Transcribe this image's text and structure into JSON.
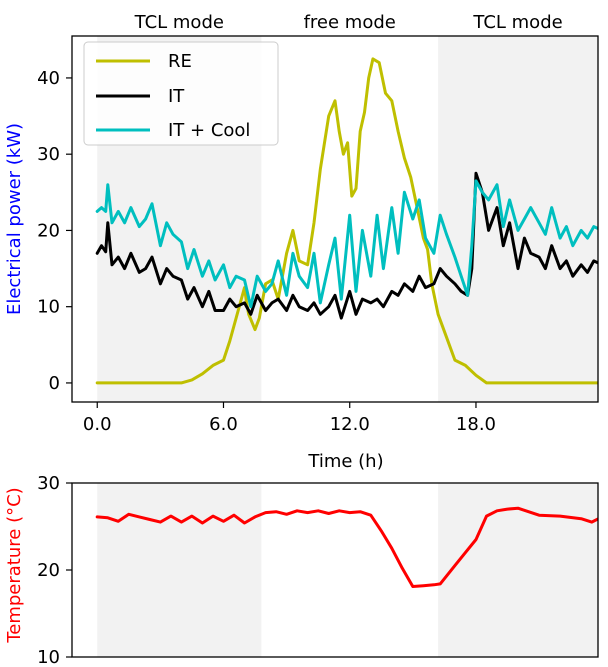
{
  "chart_data": [
    {
      "type": "line",
      "title": "",
      "xlabel": "Time (h)",
      "ylabel": "Electrical power (kW)",
      "ylabel_color": "#0000ff",
      "xlim": [
        -1.2,
        23.8
      ],
      "ylim": [
        -2.5,
        45.5
      ],
      "xticks": [
        0,
        6,
        12,
        18
      ],
      "xtick_labels": [
        "0.0",
        "6.0",
        "12.0",
        "18.0"
      ],
      "yticks": [
        0,
        10,
        20,
        30,
        40
      ],
      "ytick_labels": [
        "0",
        "10",
        "20",
        "30",
        "40"
      ],
      "grid": false,
      "legend": "top-left",
      "shaded_regions": [
        {
          "from": 0,
          "to": 7.8,
          "color": "#f2f2f2"
        },
        {
          "from": 16.2,
          "to": 24,
          "color": "#f2f2f2"
        }
      ],
      "mode_labels": [
        {
          "text": "TCL mode",
          "x": 3.9
        },
        {
          "text": "free mode",
          "x": 12.0
        },
        {
          "text": "TCL mode",
          "x": 20.0
        }
      ],
      "series": [
        {
          "name": "RE",
          "color": "#bfbf00",
          "x": [
            0,
            1,
            2,
            3,
            4,
            4.5,
            5,
            5.5,
            6,
            6.3,
            6.6,
            7,
            7.1,
            7.2,
            7.5,
            7.7,
            8,
            8.3,
            8.6,
            9,
            9.3,
            9.6,
            10,
            10.3,
            10.6,
            11,
            11.3,
            11.5,
            11.7,
            11.9,
            12.1,
            12.3,
            12.5,
            12.7,
            12.9,
            13.1,
            13.4,
            13.7,
            14,
            14.3,
            14.6,
            14.9,
            15.2,
            15.5,
            15.7,
            15.9,
            16.2,
            16.6,
            17,
            17.5,
            18,
            18.5,
            19,
            20,
            21,
            22,
            23,
            24
          ],
          "y": [
            0,
            0,
            0,
            0,
            0,
            0.4,
            1.2,
            2.3,
            3.0,
            5.5,
            8.5,
            12.5,
            10.5,
            9.0,
            7.0,
            8.5,
            13.0,
            13.5,
            11.0,
            17.0,
            20.0,
            16.0,
            15.5,
            21.0,
            28.0,
            35.0,
            37.0,
            33.0,
            30.0,
            31.5,
            24.5,
            25.5,
            33.0,
            35.5,
            40.0,
            42.5,
            42.0,
            38.0,
            37.0,
            33.0,
            29.5,
            27.0,
            23.0,
            19.0,
            17.5,
            13.0,
            9.0,
            6.0,
            3.0,
            2.3,
            1.0,
            0,
            0,
            0,
            0,
            0,
            0,
            0
          ]
        },
        {
          "name": "IT",
          "color": "#000000",
          "x": [
            0,
            0.2,
            0.4,
            0.5,
            0.7,
            1,
            1.3,
            1.6,
            2,
            2.3,
            2.6,
            3,
            3.3,
            3.6,
            4,
            4.3,
            4.6,
            5,
            5.3,
            5.6,
            6,
            6.3,
            6.6,
            7,
            7.3,
            7.6,
            8,
            8.3,
            8.6,
            9,
            9.3,
            9.6,
            10,
            10.3,
            10.6,
            11,
            11.3,
            11.6,
            12,
            12.3,
            12.6,
            13,
            13.3,
            13.6,
            14,
            14.3,
            14.6,
            15,
            15.3,
            15.6,
            16,
            16.3,
            16.6,
            17,
            17.3,
            17.6,
            17.8,
            18,
            18.3,
            18.6,
            19,
            19.3,
            19.6,
            20,
            20.3,
            20.6,
            21,
            21.3,
            21.6,
            22,
            22.3,
            22.6,
            23,
            23.3,
            23.6,
            24
          ],
          "y": [
            17,
            18,
            17.2,
            21,
            15.5,
            16.5,
            15,
            17,
            14.5,
            15,
            16.5,
            13,
            15,
            14,
            13.5,
            11,
            12.5,
            10,
            12,
            9.5,
            9.5,
            11,
            10,
            10.5,
            9,
            11.5,
            9.5,
            10.5,
            11,
            9.5,
            11.5,
            10,
            9.5,
            10.5,
            9,
            10,
            11.5,
            8.5,
            12,
            9,
            11,
            10.5,
            11,
            10,
            12,
            11.5,
            13,
            12,
            14,
            12.5,
            13,
            15,
            14,
            13,
            12,
            11.5,
            15,
            27.5,
            25,
            20,
            23,
            18,
            21,
            15,
            19,
            17,
            16.5,
            15,
            18,
            15,
            16,
            14,
            15.5,
            14.5,
            16,
            15.5
          ]
        },
        {
          "name": "IT + Cool",
          "color": "#00bfbf",
          "x": [
            0,
            0.2,
            0.4,
            0.5,
            0.7,
            1,
            1.3,
            1.6,
            2,
            2.3,
            2.6,
            3,
            3.3,
            3.6,
            4,
            4.3,
            4.6,
            5,
            5.3,
            5.6,
            6,
            6.3,
            6.6,
            7,
            7.3,
            7.6,
            8,
            8.3,
            8.6,
            9,
            9.3,
            9.6,
            10,
            10.3,
            10.6,
            11,
            11.3,
            11.6,
            12,
            12.3,
            12.6,
            13,
            13.3,
            13.6,
            14,
            14.3,
            14.6,
            15,
            15.3,
            15.6,
            16,
            16.3,
            16.6,
            17,
            17.3,
            17.6,
            17.8,
            18,
            18.3,
            18.6,
            19,
            19.3,
            19.6,
            20,
            20.3,
            20.6,
            21,
            21.3,
            21.6,
            22,
            22.3,
            22.6,
            23,
            23.3,
            23.6,
            24
          ],
          "y": [
            22.5,
            23,
            22.5,
            26,
            21,
            22.5,
            21,
            23,
            20.5,
            21.5,
            23.5,
            18,
            21,
            19.5,
            18.5,
            15,
            17.5,
            14,
            16,
            13.5,
            15.5,
            12.5,
            14,
            13.5,
            10,
            14,
            12,
            13,
            16,
            11.5,
            17,
            14,
            12.5,
            17,
            10.5,
            15.5,
            19,
            11,
            22,
            12,
            20,
            14,
            22,
            15,
            23,
            17,
            25,
            21.5,
            24,
            19,
            17,
            22,
            19.5,
            16.5,
            14,
            11.5,
            18,
            26.5,
            25,
            24,
            26,
            20.5,
            24,
            20,
            21.5,
            23,
            21,
            19.5,
            23,
            19,
            20.5,
            18,
            20,
            19,
            20.5,
            20
          ]
        }
      ]
    },
    {
      "type": "line",
      "title": "",
      "xlabel": "",
      "ylabel": "Temperature (°C)",
      "ylabel_color": "#ff0000",
      "xlim": [
        -1.2,
        23.8
      ],
      "ylim": [
        10,
        30
      ],
      "yticks": [
        10,
        20,
        30
      ],
      "ytick_labels": [
        "10",
        "20",
        "30"
      ],
      "grid": false,
      "shaded_regions": [
        {
          "from": 0,
          "to": 7.8,
          "color": "#f2f2f2"
        },
        {
          "from": 16.2,
          "to": 24,
          "color": "#f2f2f2"
        }
      ],
      "series": [
        {
          "name": "",
          "color": "#ff0000",
          "x": [
            0,
            0.5,
            1,
            1.5,
            2,
            2.5,
            3,
            3.5,
            4,
            4.5,
            5,
            5.5,
            6,
            6.5,
            7,
            7.5,
            8,
            8.5,
            9,
            9.5,
            10,
            10.5,
            11,
            11.5,
            12,
            12.5,
            13,
            13.5,
            14,
            14.5,
            15,
            15.5,
            16,
            16.3,
            17,
            17.5,
            18,
            18.5,
            19,
            19.5,
            20,
            21,
            22,
            23,
            23.5,
            24
          ],
          "y": [
            26.1,
            26.0,
            25.6,
            26.4,
            26.1,
            25.8,
            25.5,
            26.2,
            25.5,
            26.2,
            25.4,
            26.2,
            25.6,
            26.3,
            25.4,
            26.1,
            26.6,
            26.7,
            26.4,
            26.8,
            26.6,
            26.8,
            26.5,
            26.8,
            26.6,
            26.7,
            26.3,
            24.5,
            22.5,
            20.2,
            18.1,
            18.2,
            18.3,
            18.4,
            20.5,
            22.0,
            23.5,
            26.2,
            26.8,
            27.0,
            27.1,
            26.3,
            26.2,
            25.9,
            25.5,
            26.1
          ]
        }
      ]
    }
  ]
}
